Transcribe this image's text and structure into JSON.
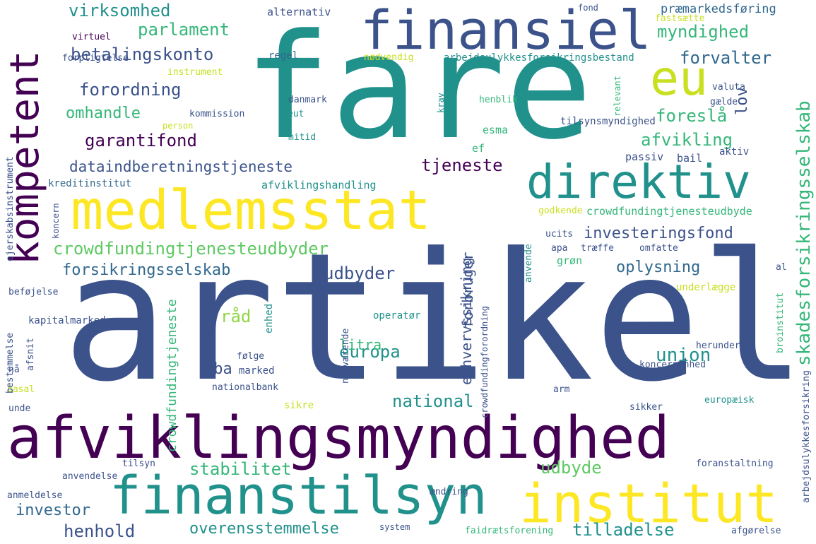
{
  "palette": {
    "purple": "#440154",
    "indigo": "#3b528b",
    "blue": "#31688e",
    "teal": "#21918c",
    "green": "#35b779",
    "lime": "#90d743",
    "yellow": "#fde725",
    "bg": "#ffffff"
  },
  "words": [
    {
      "text": "artikel",
      "color": "#3b528b"
    },
    {
      "text": "fare",
      "color": "#21918c"
    },
    {
      "text": "afviklingsmyndighed",
      "color": "#440154"
    },
    {
      "text": "medlemsstat",
      "color": "#fde725"
    },
    {
      "text": "finansiel",
      "color": "#3b528b"
    },
    {
      "text": "finanstilsyn",
      "color": "#21918c"
    },
    {
      "text": "institut",
      "color": "#fde725"
    },
    {
      "text": "direktiv",
      "color": "#21918c"
    },
    {
      "text": "kompetent",
      "color": "#440154"
    },
    {
      "text": "eu",
      "color": "#c8e020"
    },
    {
      "text": "skadesforsikringsselskab",
      "color": "#35b779"
    },
    {
      "text": "crowdfundingtjenesteudbyder",
      "color": "#5ec962"
    },
    {
      "text": "forsikringsselskab",
      "color": "#31688e"
    },
    {
      "text": "dataindberetningstjeneste",
      "color": "#3b528b"
    },
    {
      "text": "investeringsfond",
      "color": "#3b528b"
    },
    {
      "text": "oplysning",
      "color": "#31688e"
    },
    {
      "text": "garantifond",
      "color": "#440154"
    },
    {
      "text": "forordning",
      "color": "#3b528b"
    },
    {
      "text": "betalingskonto",
      "color": "#3b528b"
    },
    {
      "text": "parlament",
      "color": "#35b779"
    },
    {
      "text": "virksomhed",
      "color": "#21918c"
    },
    {
      "text": "myndighed",
      "color": "#35b779"
    },
    {
      "text": "forvalter",
      "color": "#31688e"
    },
    {
      "text": "afvikling",
      "color": "#35b779"
    },
    {
      "text": "foreslå",
      "color": "#35b779"
    },
    {
      "text": "tjeneste",
      "color": "#440154"
    },
    {
      "text": "udbyder",
      "color": "#3b528b"
    },
    {
      "text": "europa",
      "color": "#21918c"
    },
    {
      "text": "union",
      "color": "#21918c"
    },
    {
      "text": "national",
      "color": "#21918c"
    },
    {
      "text": "stabilitet",
      "color": "#35b779"
    },
    {
      "text": "udbyde",
      "color": "#5ec962"
    },
    {
      "text": "overensstemmelse",
      "color": "#21918c"
    },
    {
      "text": "tilladelse",
      "color": "#21918c"
    },
    {
      "text": "henhold",
      "color": "#3b528b"
    },
    {
      "text": "investor",
      "color": "#31688e"
    },
    {
      "text": "eba",
      "color": "#3b528b"
    },
    {
      "text": "litra",
      "color": "#35b779"
    },
    {
      "text": "råd",
      "color": "#90d743"
    },
    {
      "text": "omhandle",
      "color": "#35b779"
    },
    {
      "text": "lov",
      "color": "#3b528b"
    },
    {
      "text": "erhvervssikring",
      "color": "#3b528b"
    },
    {
      "text": "forbruger",
      "color": "#3b528b"
    },
    {
      "text": "crowdfundingtjeneste",
      "color": "#35b779"
    },
    {
      "text": "crowdfundingtjenesteudbyde",
      "color": "#35b779"
    },
    {
      "text": "arbejdsulykkesforsikringsbestand",
      "color": "#21918c"
    },
    {
      "text": "præmarkedsføring",
      "color": "#31688e"
    },
    {
      "text": "afviklingshandling",
      "color": "#21918c"
    },
    {
      "text": "kreditinstitut",
      "color": "#31688e"
    },
    {
      "text": "tilsynsmyndighed",
      "color": "#3b528b"
    },
    {
      "text": "kapitalmarked",
      "color": "#3b528b"
    },
    {
      "text": "alternativ",
      "color": "#3b528b"
    },
    {
      "text": "fastsætte",
      "color": "#c8e020"
    },
    {
      "text": "nødvendig",
      "color": "#c8e020"
    },
    {
      "text": "forpligtelse",
      "color": "#3b528b"
    },
    {
      "text": "instrument",
      "color": "#c8e020"
    },
    {
      "text": "regel",
      "color": "#31688e"
    },
    {
      "text": "virtuel",
      "color": "#440154"
    },
    {
      "text": "kommission",
      "color": "#3b528b"
    },
    {
      "text": "danmark",
      "color": "#3b528b"
    },
    {
      "text": "eut",
      "color": "#21918c"
    },
    {
      "text": "mitid",
      "color": "#21918c"
    },
    {
      "text": "henblik",
      "color": "#35b779"
    },
    {
      "text": "gælde",
      "color": "#3b528b"
    },
    {
      "text": "valuta",
      "color": "#3b528b"
    },
    {
      "text": "esma",
      "color": "#35b779"
    },
    {
      "text": "ef",
      "color": "#35b779"
    },
    {
      "text": "passiv",
      "color": "#3b528b"
    },
    {
      "text": "bail",
      "color": "#3b528b"
    },
    {
      "text": "aktiv",
      "color": "#3b528b"
    },
    {
      "text": "godkende",
      "color": "#c8e020"
    },
    {
      "text": "ucits",
      "color": "#3b528b"
    },
    {
      "text": "apa",
      "color": "#3b528b"
    },
    {
      "text": "træffe",
      "color": "#3b528b"
    },
    {
      "text": "omfatte",
      "color": "#3b528b"
    },
    {
      "text": "grøn",
      "color": "#35b779"
    },
    {
      "text": "anvende",
      "color": "#21918c"
    },
    {
      "text": "underlægge",
      "color": "#c8e020"
    },
    {
      "text": "enhed",
      "color": "#21918c"
    },
    {
      "text": "operatør",
      "color": "#21918c"
    },
    {
      "text": "følge",
      "color": "#3b528b"
    },
    {
      "text": "marked",
      "color": "#3b528b"
    },
    {
      "text": "nationalbank",
      "color": "#3b528b"
    },
    {
      "text": "nærværende",
      "color": "#3b528b"
    },
    {
      "text": "arm",
      "color": "#3b528b"
    },
    {
      "text": "sikre",
      "color": "#c8e020"
    },
    {
      "text": "koncernenhed",
      "color": "#3b528b"
    },
    {
      "text": "herunder",
      "color": "#3b528b"
    },
    {
      "text": "europæisk",
      "color": "#21918c"
    },
    {
      "text": "sikker",
      "color": "#3b528b"
    },
    {
      "text": "foranstaltning",
      "color": "#3b528b"
    },
    {
      "text": "ændring",
      "color": "#3b528b"
    },
    {
      "text": "faidrætsforening",
      "color": "#35b779"
    },
    {
      "text": "afgørelse",
      "color": "#3b528b"
    },
    {
      "text": "system",
      "color": "#3b528b"
    },
    {
      "text": "tilsyn",
      "color": "#3b528b"
    },
    {
      "text": "anvendelse",
      "color": "#3b528b"
    },
    {
      "text": "anmeldelse",
      "color": "#3b528b"
    },
    {
      "text": "basal",
      "color": "#c8e020"
    },
    {
      "text": "unde",
      "color": "#3b528b"
    },
    {
      "text": "nå",
      "color": "#3b528b"
    },
    {
      "text": "afsnit",
      "color": "#3b528b"
    },
    {
      "text": "bestemmelse",
      "color": "#3b528b"
    },
    {
      "text": "beføjelse",
      "color": "#3b528b"
    },
    {
      "text": "ejerskabsinstrument",
      "color": "#3b528b"
    },
    {
      "text": "koncern",
      "color": "#3b528b"
    },
    {
      "text": "person",
      "color": "#c8e020"
    },
    {
      "text": "arbejdsulykkesforsikring",
      "color": "#3b528b"
    },
    {
      "text": "broinstitut",
      "color": "#35b779"
    },
    {
      "text": "al",
      "color": "#3b528b"
    },
    {
      "text": "fond",
      "color": "#3b528b"
    },
    {
      "text": "relevant",
      "color": "#35b779"
    },
    {
      "text": "krav",
      "color": "#21918c"
    },
    {
      "text": "crowdfundingforordning",
      "color": "#3b528b"
    }
  ]
}
